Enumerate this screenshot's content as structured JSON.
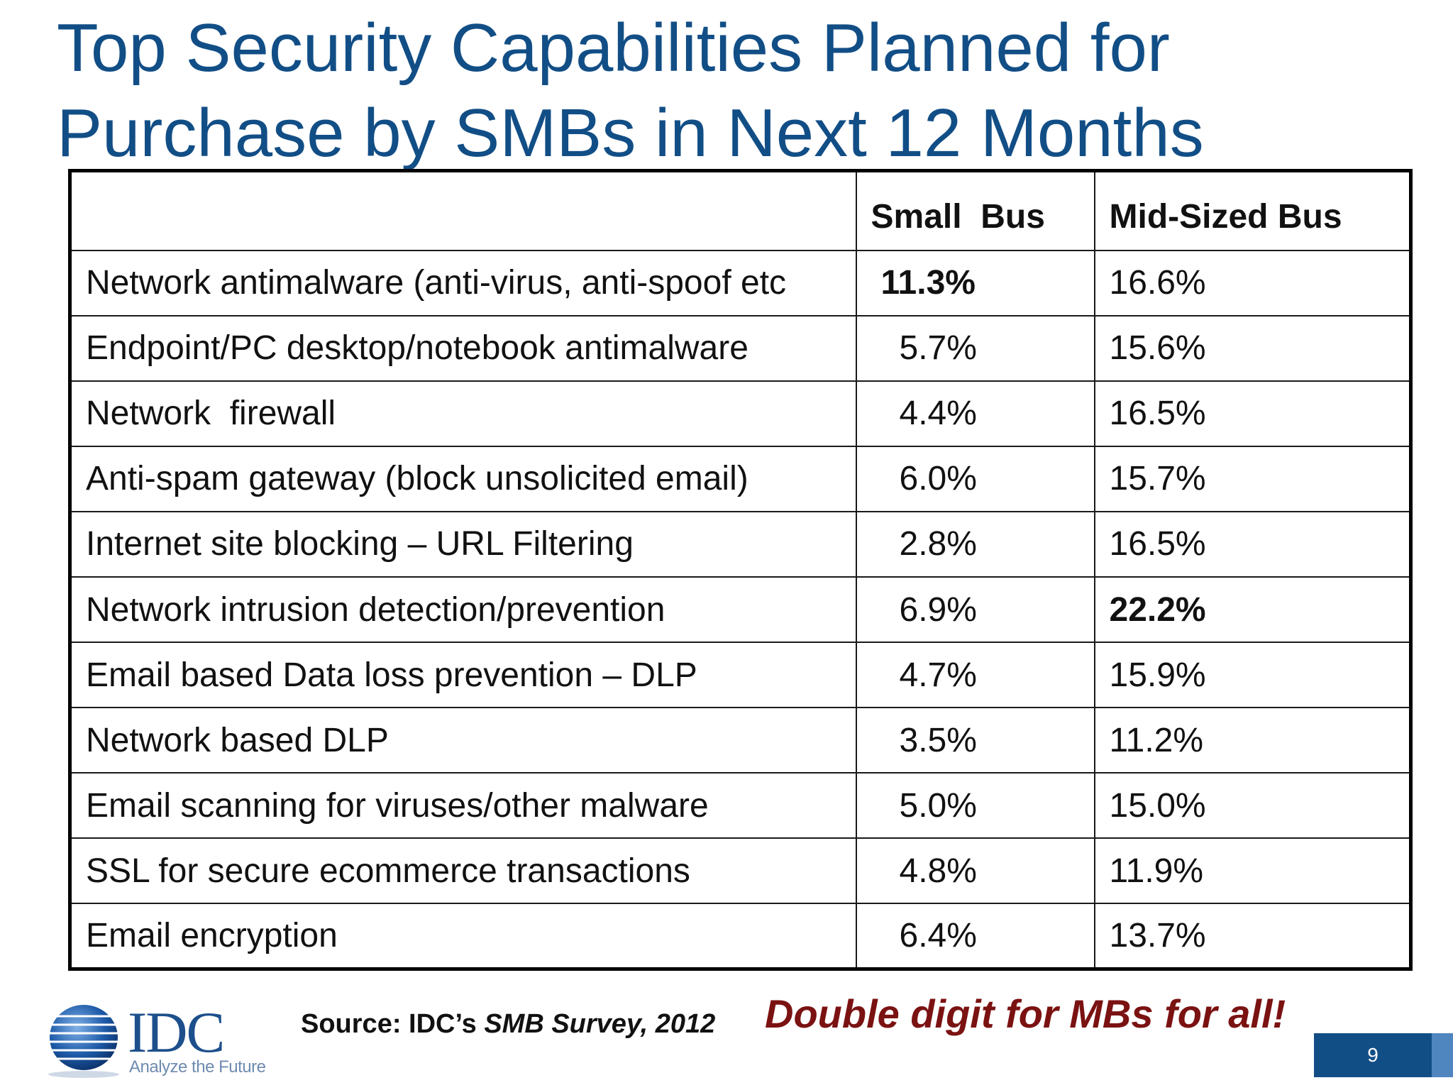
{
  "title": {
    "line1": "Top Security Capabilities Planned for",
    "line2": "Purchase by SMBs in Next 12 Months"
  },
  "table": {
    "headers": [
      "",
      "Small  Bus",
      "Mid-Sized Bus"
    ],
    "rows": [
      {
        "label": "Network antimalware (anti-virus, anti-spoof etc",
        "small": "11.3%",
        "mid": "16.6%"
      },
      {
        "label": "Endpoint/PC desktop/notebook antimalware",
        "small": "5.7%",
        "mid": "15.6%"
      },
      {
        "label": "Network  firewall",
        "small": "4.4%",
        "mid": "16.5%"
      },
      {
        "label": "Anti-spam gateway (block unsolicited email)",
        "small": "6.0%",
        "mid": "15.7%"
      },
      {
        "label": "Internet site blocking – URL Filtering",
        "small": "2.8%",
        "mid": "16.5%"
      },
      {
        "label": "Network intrusion detection/prevention",
        "small": "6.9%",
        "mid": "22.2%"
      },
      {
        "label": "Email based Data loss prevention – DLP",
        "small": "4.7%",
        "mid": "15.9%"
      },
      {
        "label": "Network based DLP",
        "small": "3.5%",
        "mid": "11.2%"
      },
      {
        "label": "Email scanning for viruses/other malware",
        "small": "5.0%",
        "mid": "15.0%"
      },
      {
        "label": "SSL for secure ecommerce transactions",
        "small": "4.8%",
        "mid": "11.9%"
      },
      {
        "label": "Email encryption",
        "small": "6.4%",
        "mid": "13.7%"
      }
    ]
  },
  "logo": {
    "name": "IDC",
    "tagline": "Analyze the Future"
  },
  "source": {
    "prefix": "Source: IDC’s ",
    "italic": "SMB Survey, 2012"
  },
  "callout": "Double digit for MBs for all!",
  "page_number": "9",
  "colors": {
    "title": "#124e86",
    "callout": "#7b1212",
    "page_box": "#124e86"
  }
}
